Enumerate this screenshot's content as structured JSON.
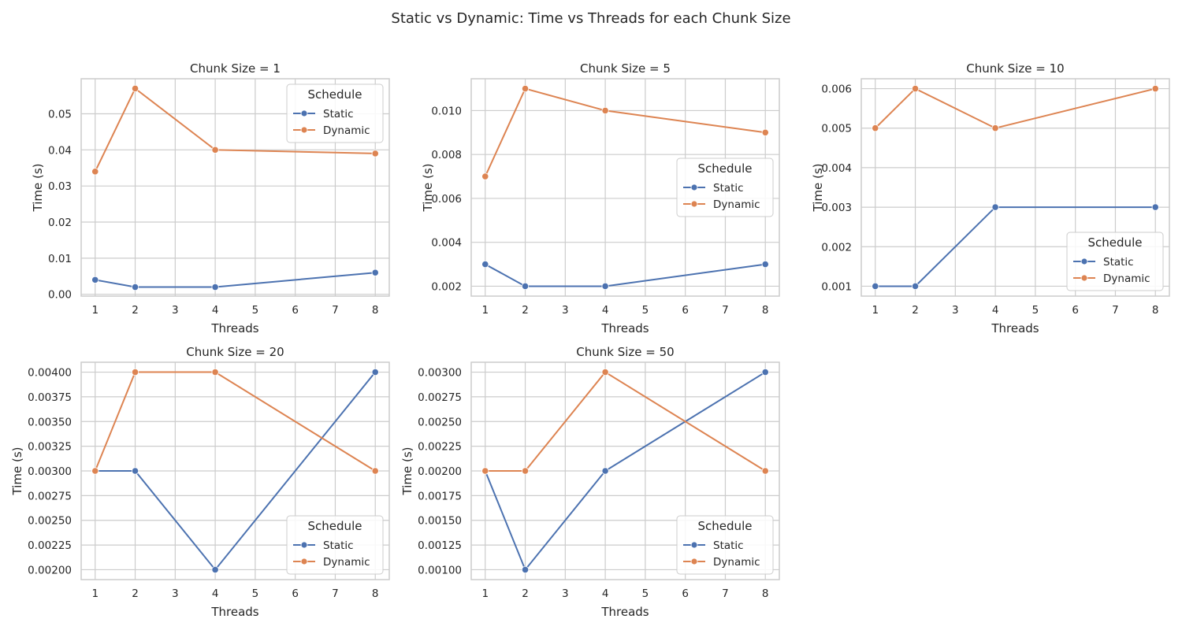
{
  "title": "Static vs Dynamic: Time vs Threads for each Chunk Size",
  "colors": {
    "Static": "#4c72b0",
    "Dynamic": "#dd8452",
    "grid": "#cccccc",
    "frame": "#cccccc"
  },
  "chart_data": [
    {
      "type": "line",
      "title": "Chunk Size = 1",
      "xlabel": "Threads",
      "ylabel": "Time (s)",
      "x": [
        1,
        2,
        4,
        8
      ],
      "xlim": [
        0.65,
        8.35
      ],
      "ylim": [
        -0.0005,
        0.0597
      ],
      "xticks": [
        1,
        2,
        3,
        4,
        5,
        6,
        7,
        8
      ],
      "yticks": [
        0.0,
        0.01,
        0.02,
        0.03,
        0.04,
        0.05
      ],
      "ytick_labels": [
        "0.00",
        "0.01",
        "0.02",
        "0.03",
        "0.04",
        "0.05"
      ],
      "grid": true,
      "legend": {
        "title": "Schedule",
        "placement": "top-right"
      },
      "series": [
        {
          "name": "Static",
          "values": [
            0.004,
            0.002,
            0.002,
            0.006
          ]
        },
        {
          "name": "Dynamic",
          "values": [
            0.034,
            0.057,
            0.04,
            0.039
          ]
        }
      ]
    },
    {
      "type": "line",
      "title": "Chunk Size = 5",
      "xlabel": "Threads",
      "ylabel": "Time (s)",
      "x": [
        1,
        2,
        4,
        8
      ],
      "xlim": [
        0.65,
        8.35
      ],
      "ylim": [
        0.00155,
        0.01145
      ],
      "xticks": [
        1,
        2,
        3,
        4,
        5,
        6,
        7,
        8
      ],
      "yticks": [
        0.002,
        0.004,
        0.006,
        0.008,
        0.01
      ],
      "ytick_labels": [
        "0.002",
        "0.004",
        "0.006",
        "0.008",
        "0.010"
      ],
      "grid": true,
      "legend": {
        "title": "Schedule",
        "placement": "center-right"
      },
      "series": [
        {
          "name": "Static",
          "values": [
            0.003,
            0.002,
            0.002,
            0.003
          ]
        },
        {
          "name": "Dynamic",
          "values": [
            0.007,
            0.011,
            0.01,
            0.009
          ]
        }
      ]
    },
    {
      "type": "line",
      "title": "Chunk Size = 10",
      "xlabel": "Threads",
      "ylabel": "Time (s)",
      "x": [
        1,
        2,
        4,
        8
      ],
      "xlim": [
        0.65,
        8.35
      ],
      "ylim": [
        0.00075,
        0.00625
      ],
      "xticks": [
        1,
        2,
        3,
        4,
        5,
        6,
        7,
        8
      ],
      "yticks": [
        0.001,
        0.002,
        0.003,
        0.004,
        0.005,
        0.006
      ],
      "ytick_labels": [
        "0.001",
        "0.002",
        "0.003",
        "0.004",
        "0.005",
        "0.006"
      ],
      "grid": true,
      "legend": {
        "title": "Schedule",
        "placement": "lower-right"
      },
      "series": [
        {
          "name": "Static",
          "values": [
            0.001,
            0.001,
            0.003,
            0.003
          ]
        },
        {
          "name": "Dynamic",
          "values": [
            0.005,
            0.006,
            0.005,
            0.006
          ]
        }
      ]
    },
    {
      "type": "line",
      "title": "Chunk Size = 20",
      "xlabel": "Threads",
      "ylabel": "Time (s)",
      "x": [
        1,
        2,
        4,
        8
      ],
      "xlim": [
        0.65,
        8.35
      ],
      "ylim": [
        0.0019,
        0.0041
      ],
      "xticks": [
        1,
        2,
        3,
        4,
        5,
        6,
        7,
        8
      ],
      "yticks": [
        0.002,
        0.00225,
        0.0025,
        0.00275,
        0.003,
        0.00325,
        0.0035,
        0.00375,
        0.004
      ],
      "ytick_labels": [
        "0.00200",
        "0.00225",
        "0.00250",
        "0.00275",
        "0.00300",
        "0.00325",
        "0.00350",
        "0.00375",
        "0.00400"
      ],
      "grid": true,
      "legend": {
        "title": "Schedule",
        "placement": "lower-right"
      },
      "series": [
        {
          "name": "Static",
          "values": [
            0.003,
            0.003,
            0.002,
            0.004
          ]
        },
        {
          "name": "Dynamic",
          "values": [
            0.003,
            0.004,
            0.004,
            0.003
          ]
        }
      ]
    },
    {
      "type": "line",
      "title": "Chunk Size = 50",
      "xlabel": "Threads",
      "ylabel": "Time (s)",
      "x": [
        1,
        2,
        4,
        8
      ],
      "xlim": [
        0.65,
        8.35
      ],
      "ylim": [
        0.0009,
        0.0031
      ],
      "xticks": [
        1,
        2,
        3,
        4,
        5,
        6,
        7,
        8
      ],
      "yticks": [
        0.001,
        0.00125,
        0.0015,
        0.00175,
        0.002,
        0.00225,
        0.0025,
        0.00275,
        0.003
      ],
      "ytick_labels": [
        "0.00100",
        "0.00125",
        "0.00150",
        "0.00175",
        "0.00200",
        "0.00225",
        "0.00250",
        "0.00275",
        "0.00300"
      ],
      "grid": true,
      "legend": {
        "title": "Schedule",
        "placement": "lower-right"
      },
      "series": [
        {
          "name": "Static",
          "values": [
            0.002,
            0.001,
            0.002,
            0.003
          ]
        },
        {
          "name": "Dynamic",
          "values": [
            0.002,
            0.002,
            0.003,
            0.002
          ]
        }
      ]
    }
  ]
}
